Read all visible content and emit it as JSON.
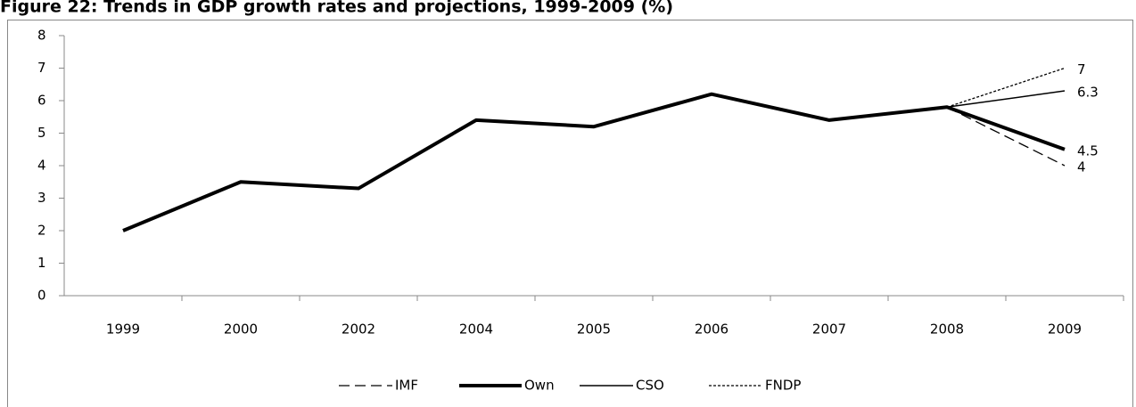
{
  "chart_data": {
    "type": "line",
    "title": "Figure 22: Trends in GDP growth rates and projections, 1999-2009 (%)",
    "categories": [
      "1999",
      "2000",
      "2002",
      "2004",
      "2005",
      "2006",
      "2007",
      "2008",
      "2009"
    ],
    "series": [
      {
        "name": "IMF",
        "color": "#000000",
        "dash": "dashed",
        "values": [
          null,
          null,
          null,
          null,
          null,
          null,
          null,
          5.8,
          4
        ]
      },
      {
        "name": "Own",
        "color": "#000000",
        "dash": "thick",
        "values": [
          2,
          3.5,
          3.3,
          5.4,
          5.2,
          6.2,
          5.4,
          5.8,
          4.5
        ]
      },
      {
        "name": "CSO",
        "color": "#000000",
        "dash": "solid",
        "values": [
          null,
          null,
          null,
          null,
          null,
          null,
          null,
          5.8,
          6.3
        ]
      },
      {
        "name": "FNDP",
        "color": "#000000",
        "dash": "dotted",
        "values": [
          null,
          null,
          null,
          null,
          null,
          null,
          null,
          5.8,
          7
        ]
      }
    ],
    "ylim": [
      0,
      8
    ],
    "yticks": [
      0,
      1,
      2,
      3,
      4,
      5,
      6,
      7,
      8
    ],
    "grid": false,
    "legend": "bottom"
  }
}
